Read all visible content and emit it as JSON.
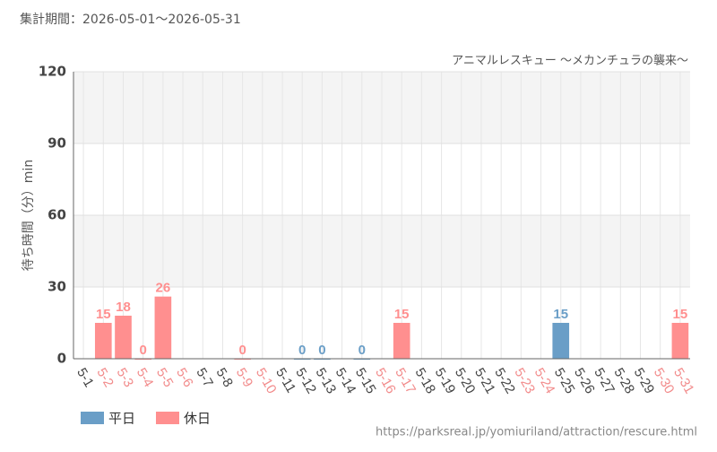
{
  "chart_data": {
    "type": "bar",
    "header": "集計期間：2026-05-01～2026-05-31",
    "subtitle": "アニマルレスキュー ～メカンチュラの襲来～",
    "y_label": "待ち時間（分）min",
    "source": "https://parksreal.jp/yomiuriland/attraction/rescure.html",
    "categories": [
      "5-1",
      "5-2",
      "5-3",
      "5-4",
      "5-5",
      "5-6",
      "5-7",
      "5-8",
      "5-9",
      "5-10",
      "5-11",
      "5-12",
      "5-13",
      "5-14",
      "5-15",
      "5-16",
      "5-17",
      "5-18",
      "5-19",
      "5-20",
      "5-21",
      "5-22",
      "5-23",
      "5-24",
      "5-25",
      "5-26",
      "5-27",
      "5-28",
      "5-29",
      "5-30",
      "5-31"
    ],
    "category_colors": [
      "#444",
      "#f28b8b",
      "#f28b8b",
      "#f28b8b",
      "#f28b8b",
      "#f28b8b",
      "#444",
      "#444",
      "#f28b8b",
      "#f28b8b",
      "#444",
      "#444",
      "#444",
      "#444",
      "#444",
      "#f28b8b",
      "#f28b8b",
      "#444",
      "#444",
      "#444",
      "#444",
      "#444",
      "#f28b8b",
      "#f28b8b",
      "#444",
      "#444",
      "#444",
      "#444",
      "#444",
      "#f28b8b",
      "#f28b8b"
    ],
    "series": [
      {
        "name": "平日",
        "color": "#6a9ec7",
        "values": [
          null,
          null,
          null,
          null,
          null,
          null,
          null,
          null,
          null,
          null,
          null,
          0,
          0,
          null,
          0,
          null,
          null,
          null,
          null,
          null,
          null,
          null,
          null,
          null,
          15,
          null,
          null,
          null,
          null,
          null,
          null
        ]
      },
      {
        "name": "休日",
        "color": "#ff8f8f",
        "values": [
          null,
          15,
          18,
          0,
          26,
          null,
          null,
          null,
          0,
          null,
          null,
          null,
          null,
          null,
          null,
          null,
          15,
          null,
          null,
          null,
          null,
          null,
          null,
          null,
          null,
          null,
          null,
          null,
          null,
          null,
          15
        ]
      }
    ],
    "ylim": [
      0,
      120
    ],
    "yticks": [
      0,
      30,
      60,
      90,
      120
    ],
    "grid": true,
    "legend": "bottom-left"
  }
}
